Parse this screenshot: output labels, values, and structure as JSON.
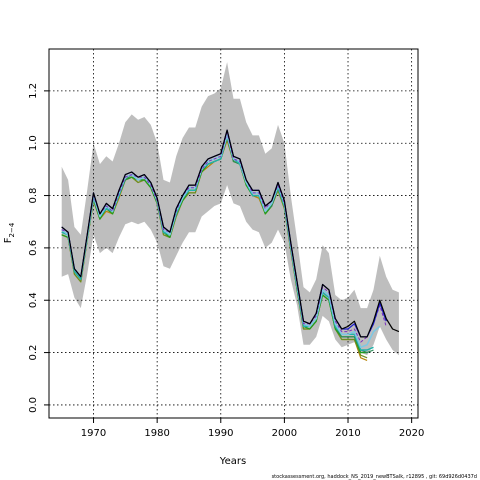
{
  "chart_data": {
    "type": "line",
    "xlabel": "Years",
    "ylabel_base": "F",
    "ylabel_sub": "2−4",
    "xlim": [
      1963,
      2021
    ],
    "ylim": [
      -0.05,
      1.36
    ],
    "xticks": [
      "1970",
      "1980",
      "1990",
      "2000",
      "2010",
      "2020"
    ],
    "yticks": [
      "0.0",
      "0.2",
      "0.4",
      "0.6",
      "0.8",
      "1.0",
      "1.2"
    ],
    "grid": true,
    "footer": "stockassessment.org, haddock_NS_2019_newBTSalk, r12895 , git: 69d926d0437d",
    "colors": {
      "band": "#bebebe",
      "runs": [
        "#000000",
        "#1c1ccc",
        "#7b2fbe",
        "#7ec8e3",
        "#20b2aa",
        "#2e8b57",
        "#1f9e1f",
        "#6b8e23",
        "#b8860b"
      ]
    },
    "band": {
      "x": [
        1965,
        1966,
        1967,
        1968,
        1969,
        1970,
        1971,
        1972,
        1973,
        1974,
        1975,
        1976,
        1977,
        1978,
        1979,
        1980,
        1981,
        1982,
        1983,
        1984,
        1985,
        1986,
        1987,
        1988,
        1989,
        1990,
        1991,
        1992,
        1993,
        1994,
        1995,
        1996,
        1997,
        1998,
        1999,
        2000,
        2001,
        2002,
        2003,
        2004,
        2005,
        2006,
        2007,
        2008,
        2009,
        2010,
        2011,
        2012,
        2013,
        2014,
        2015,
        2016,
        2017,
        2018
      ],
      "upper": [
        0.91,
        0.86,
        0.68,
        0.65,
        0.82,
        1.0,
        0.92,
        0.95,
        0.93,
        1.0,
        1.08,
        1.11,
        1.09,
        1.1,
        1.07,
        1.0,
        0.86,
        0.85,
        0.95,
        1.02,
        1.06,
        1.06,
        1.14,
        1.18,
        1.19,
        1.21,
        1.31,
        1.17,
        1.17,
        1.08,
        1.03,
        1.03,
        0.96,
        0.98,
        1.07,
        1.0,
        0.8,
        0.63,
        0.45,
        0.43,
        0.48,
        0.61,
        0.58,
        0.42,
        0.4,
        0.41,
        0.44,
        0.37,
        0.37,
        0.44,
        0.57,
        0.49,
        0.44,
        0.43
      ],
      "lower": [
        0.49,
        0.5,
        0.41,
        0.37,
        0.5,
        0.65,
        0.58,
        0.6,
        0.58,
        0.64,
        0.69,
        0.7,
        0.69,
        0.7,
        0.67,
        0.62,
        0.53,
        0.52,
        0.57,
        0.62,
        0.66,
        0.66,
        0.72,
        0.74,
        0.76,
        0.77,
        0.84,
        0.77,
        0.76,
        0.7,
        0.67,
        0.66,
        0.6,
        0.62,
        0.67,
        0.62,
        0.48,
        0.38,
        0.23,
        0.23,
        0.26,
        0.34,
        0.32,
        0.25,
        0.22,
        0.23,
        0.24,
        0.2,
        0.19,
        0.23,
        0.3,
        0.25,
        0.21,
        0.19
      ]
    },
    "series": [
      {
        "x": [
          1965,
          1966,
          1967,
          1968,
          1969,
          1970,
          1971,
          1972,
          1973,
          1974,
          1975,
          1976,
          1977,
          1978,
          1979,
          1980,
          1981,
          1982,
          1983,
          1984,
          1985,
          1986,
          1987,
          1988,
          1989,
          1990,
          1991,
          1992,
          1993,
          1994,
          1995,
          1996,
          1997,
          1998,
          1999,
          2000,
          2001,
          2002,
          2003,
          2004,
          2005,
          2006,
          2007,
          2008,
          2009,
          2010,
          2011,
          2012,
          2013,
          2014,
          2015,
          2016,
          2017,
          2018
        ],
        "values": [
          0.68,
          0.66,
          0.52,
          0.49,
          0.65,
          0.81,
          0.73,
          0.77,
          0.75,
          0.82,
          0.88,
          0.89,
          0.87,
          0.88,
          0.85,
          0.79,
          0.68,
          0.66,
          0.75,
          0.8,
          0.84,
          0.84,
          0.91,
          0.94,
          0.95,
          0.96,
          1.05,
          0.95,
          0.94,
          0.86,
          0.82,
          0.82,
          0.76,
          0.78,
          0.85,
          0.78,
          0.62,
          0.47,
          0.32,
          0.31,
          0.35,
          0.46,
          0.44,
          0.33,
          0.29,
          0.3,
          0.32,
          0.26,
          0.26,
          0.32,
          0.4,
          0.33,
          0.29,
          0.28
        ]
      },
      {
        "x": [
          1965,
          1966,
          1967,
          1968,
          1969,
          1970,
          1971,
          1972,
          1973,
          1974,
          1975,
          1976,
          1977,
          1978,
          1979,
          1980,
          1981,
          1982,
          1983,
          1984,
          1985,
          1986,
          1987,
          1988,
          1989,
          1990,
          1991,
          1992,
          1993,
          1994,
          1995,
          1996,
          1997,
          1998,
          1999,
          2000,
          2001,
          2002,
          2003,
          2004,
          2005,
          2006,
          2007,
          2008,
          2009,
          2010,
          2011,
          2012,
          2013,
          2014,
          2015,
          2016
        ],
        "values": [
          0.68,
          0.66,
          0.52,
          0.49,
          0.65,
          0.81,
          0.73,
          0.77,
          0.75,
          0.82,
          0.88,
          0.89,
          0.87,
          0.88,
          0.85,
          0.79,
          0.68,
          0.66,
          0.75,
          0.8,
          0.84,
          0.84,
          0.91,
          0.94,
          0.95,
          0.96,
          1.05,
          0.95,
          0.94,
          0.86,
          0.82,
          0.82,
          0.76,
          0.78,
          0.85,
          0.78,
          0.62,
          0.47,
          0.32,
          0.31,
          0.35,
          0.46,
          0.44,
          0.33,
          0.29,
          0.29,
          0.31,
          0.26,
          0.26,
          0.31,
          0.39,
          0.32
        ]
      },
      {
        "x": [
          1965,
          1966,
          1967,
          1968,
          1969,
          1970,
          1971,
          1972,
          1973,
          1974,
          1975,
          1976,
          1977,
          1978,
          1979,
          1980,
          1981,
          1982,
          1983,
          1984,
          1985,
          1986,
          1987,
          1988,
          1989,
          1990,
          1991,
          1992,
          1993,
          1994,
          1995,
          1996,
          1997,
          1998,
          1999,
          2000,
          2001,
          2002,
          2003,
          2004,
          2005,
          2006,
          2007,
          2008,
          2009,
          2010,
          2011,
          2012,
          2013,
          2014,
          2015,
          2016
        ],
        "values": [
          0.67,
          0.66,
          0.52,
          0.49,
          0.65,
          0.8,
          0.73,
          0.76,
          0.74,
          0.81,
          0.87,
          0.88,
          0.87,
          0.87,
          0.84,
          0.78,
          0.67,
          0.66,
          0.74,
          0.8,
          0.83,
          0.83,
          0.9,
          0.93,
          0.94,
          0.95,
          1.04,
          0.94,
          0.93,
          0.86,
          0.81,
          0.81,
          0.75,
          0.78,
          0.84,
          0.77,
          0.61,
          0.46,
          0.31,
          0.31,
          0.34,
          0.45,
          0.43,
          0.32,
          0.28,
          0.28,
          0.29,
          0.24,
          0.26,
          0.31,
          0.38,
          0.3
        ]
      },
      {
        "x": [
          1965,
          1966,
          1967,
          1968,
          1969,
          1970,
          1971,
          1972,
          1973,
          1974,
          1975,
          1976,
          1977,
          1978,
          1979,
          1980,
          1981,
          1982,
          1983,
          1984,
          1985,
          1986,
          1987,
          1988,
          1989,
          1990,
          1991,
          1992,
          1993,
          1994,
          1995,
          1996,
          1997,
          1998,
          1999,
          2000,
          2001,
          2002,
          2003,
          2004,
          2005,
          2006,
          2007,
          2008,
          2009,
          2010,
          2011,
          2012,
          2013,
          2014,
          2015
        ],
        "values": [
          0.67,
          0.65,
          0.52,
          0.49,
          0.64,
          0.8,
          0.72,
          0.76,
          0.74,
          0.81,
          0.87,
          0.88,
          0.86,
          0.87,
          0.84,
          0.78,
          0.67,
          0.65,
          0.74,
          0.79,
          0.83,
          0.83,
          0.9,
          0.93,
          0.94,
          0.95,
          1.03,
          0.94,
          0.93,
          0.85,
          0.81,
          0.81,
          0.74,
          0.77,
          0.84,
          0.77,
          0.61,
          0.46,
          0.31,
          0.3,
          0.33,
          0.44,
          0.42,
          0.31,
          0.27,
          0.27,
          0.28,
          0.22,
          0.23,
          0.28,
          0.3
        ]
      },
      {
        "x": [
          1965,
          1966,
          1967,
          1968,
          1969,
          1970,
          1971,
          1972,
          1973,
          1974,
          1975,
          1976,
          1977,
          1978,
          1979,
          1980,
          1981,
          1982,
          1983,
          1984,
          1985,
          1986,
          1987,
          1988,
          1989,
          1990,
          1991,
          1992,
          1993,
          1994,
          1995,
          1996,
          1997,
          1998,
          1999,
          2000,
          2001,
          2002,
          2003,
          2004,
          2005,
          2006,
          2007,
          2008,
          2009,
          2010,
          2011,
          2012,
          2013,
          2014
        ],
        "values": [
          0.66,
          0.65,
          0.51,
          0.48,
          0.64,
          0.79,
          0.72,
          0.75,
          0.74,
          0.8,
          0.87,
          0.88,
          0.86,
          0.87,
          0.84,
          0.78,
          0.66,
          0.65,
          0.73,
          0.79,
          0.82,
          0.82,
          0.9,
          0.92,
          0.93,
          0.94,
          1.03,
          0.94,
          0.92,
          0.85,
          0.8,
          0.8,
          0.74,
          0.77,
          0.83,
          0.76,
          0.6,
          0.45,
          0.3,
          0.3,
          0.33,
          0.43,
          0.41,
          0.3,
          0.27,
          0.27,
          0.27,
          0.21,
          0.21,
          0.22
        ]
      },
      {
        "x": [
          1965,
          1966,
          1967,
          1968,
          1969,
          1970,
          1971,
          1972,
          1973,
          1974,
          1975,
          1976,
          1977,
          1978,
          1979,
          1980,
          1981,
          1982,
          1983,
          1984,
          1985,
          1986,
          1987,
          1988,
          1989,
          1990,
          1991,
          1992,
          1993,
          1994,
          1995,
          1996,
          1997,
          1998,
          1999,
          2000,
          2001,
          2002,
          2003,
          2004,
          2005,
          2006,
          2007,
          2008,
          2009,
          2010,
          2011,
          2012,
          2013,
          2014
        ],
        "values": [
          0.66,
          0.65,
          0.51,
          0.48,
          0.64,
          0.79,
          0.72,
          0.75,
          0.74,
          0.8,
          0.86,
          0.88,
          0.86,
          0.87,
          0.84,
          0.78,
          0.66,
          0.65,
          0.73,
          0.79,
          0.82,
          0.82,
          0.9,
          0.92,
          0.93,
          0.94,
          1.02,
          0.93,
          0.92,
          0.85,
          0.8,
          0.8,
          0.74,
          0.76,
          0.83,
          0.76,
          0.6,
          0.45,
          0.3,
          0.3,
          0.33,
          0.43,
          0.41,
          0.3,
          0.26,
          0.26,
          0.26,
          0.21,
          0.2,
          0.21
        ]
      },
      {
        "x": [
          1965,
          1966,
          1967,
          1968,
          1969,
          1970,
          1971,
          1972,
          1973,
          1974,
          1975,
          1976,
          1977,
          1978,
          1979,
          1980,
          1981,
          1982,
          1983,
          1984,
          1985,
          1986,
          1987,
          1988,
          1989,
          1990,
          1991,
          1992,
          1993,
          1994,
          1995,
          1996,
          1997,
          1998,
          1999,
          2000,
          2001,
          2002,
          2003,
          2004,
          2005,
          2006,
          2007,
          2008,
          2009,
          2010,
          2011,
          2012,
          2013
        ],
        "values": [
          0.65,
          0.64,
          0.51,
          0.48,
          0.63,
          0.79,
          0.71,
          0.75,
          0.73,
          0.8,
          0.86,
          0.87,
          0.86,
          0.86,
          0.83,
          0.77,
          0.66,
          0.64,
          0.73,
          0.78,
          0.82,
          0.82,
          0.89,
          0.92,
          0.93,
          0.94,
          1.02,
          0.93,
          0.92,
          0.84,
          0.8,
          0.8,
          0.73,
          0.76,
          0.83,
          0.76,
          0.6,
          0.44,
          0.3,
          0.29,
          0.32,
          0.42,
          0.4,
          0.29,
          0.26,
          0.26,
          0.26,
          0.2,
          0.2
        ]
      },
      {
        "x": [
          1965,
          1966,
          1967,
          1968,
          1969,
          1970,
          1971,
          1972,
          1973,
          1974,
          1975,
          1976,
          1977,
          1978,
          1979,
          1980,
          1981,
          1982,
          1983,
          1984,
          1985,
          1986,
          1987,
          1988,
          1989,
          1990,
          1991,
          1992,
          1993,
          1994,
          1995,
          1996,
          1997,
          1998,
          1999,
          2000,
          2001,
          2002,
          2003,
          2004,
          2005,
          2006,
          2007,
          2008,
          2009,
          2010,
          2011,
          2012,
          2013
        ],
        "values": [
          0.65,
          0.64,
          0.5,
          0.47,
          0.63,
          0.78,
          0.71,
          0.75,
          0.73,
          0.8,
          0.86,
          0.87,
          0.85,
          0.86,
          0.83,
          0.77,
          0.65,
          0.64,
          0.72,
          0.78,
          0.81,
          0.81,
          0.89,
          0.92,
          0.93,
          0.94,
          1.02,
          0.93,
          0.92,
          0.84,
          0.8,
          0.8,
          0.73,
          0.76,
          0.82,
          0.75,
          0.59,
          0.44,
          0.29,
          0.29,
          0.32,
          0.42,
          0.4,
          0.29,
          0.25,
          0.25,
          0.25,
          0.19,
          0.18
        ]
      },
      {
        "x": [
          1965,
          1966,
          1967,
          1968,
          1969,
          1970,
          1971,
          1972,
          1973,
          1974,
          1975,
          1976,
          1977,
          1978,
          1979,
          1980,
          1981,
          1982,
          1983,
          1984,
          1985,
          1986,
          1987,
          1988,
          1989,
          1990,
          1991,
          1992,
          1993,
          1994,
          1995,
          1996,
          1997,
          1998,
          1999,
          2000,
          2001,
          2002,
          2003,
          2004,
          2005,
          2006,
          2007,
          2008,
          2009,
          2010,
          2011,
          2012,
          2013
        ],
        "values": [
          0.65,
          0.64,
          0.5,
          0.47,
          0.63,
          0.78,
          0.71,
          0.74,
          0.73,
          0.79,
          0.86,
          0.87,
          0.85,
          0.86,
          0.83,
          0.77,
          0.65,
          0.64,
          0.72,
          0.78,
          0.81,
          0.81,
          0.89,
          0.91,
          0.93,
          0.94,
          1.01,
          0.93,
          0.92,
          0.84,
          0.8,
          0.79,
          0.73,
          0.76,
          0.82,
          0.75,
          0.59,
          0.44,
          0.29,
          0.29,
          0.32,
          0.42,
          0.4,
          0.29,
          0.25,
          0.25,
          0.25,
          0.18,
          0.17
        ]
      }
    ]
  }
}
